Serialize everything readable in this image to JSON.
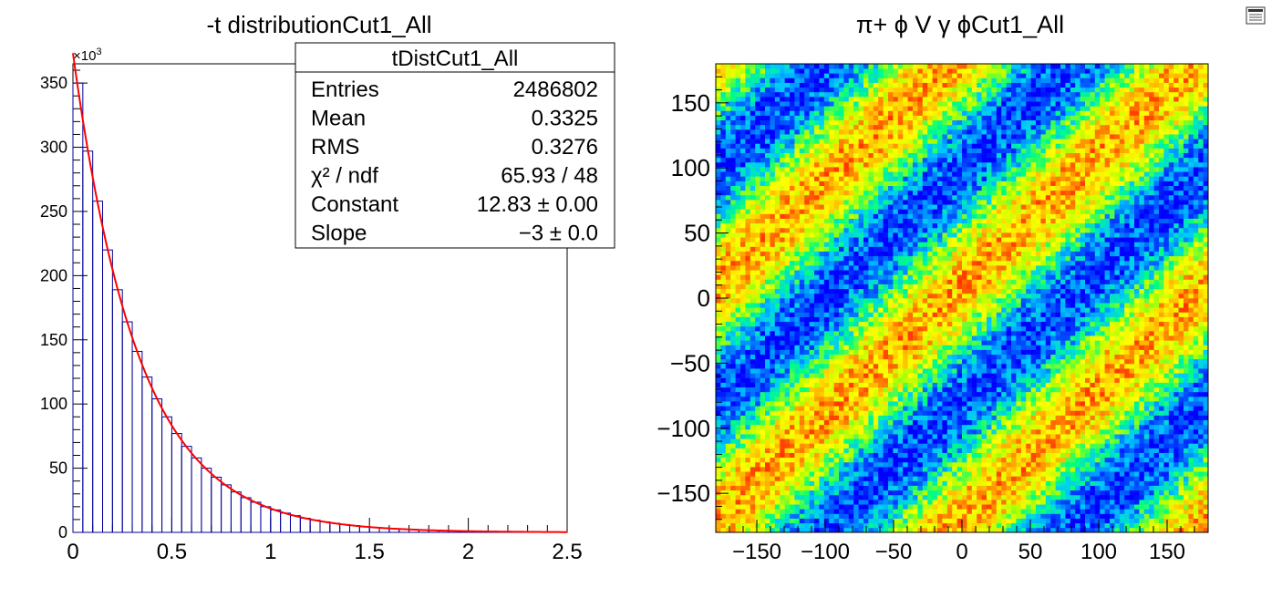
{
  "chart_data": [
    {
      "type": "bar",
      "title": "-t distributionCut1_All",
      "xlabel": "",
      "ylabel": "",
      "xlim": [
        0,
        2.5
      ],
      "ylim": [
        0,
        365000
      ],
      "y_multiplier_label": "×10",
      "y_multiplier_exp": "3",
      "x_ticks": [
        "0",
        "0.5",
        "1",
        "1.5",
        "2",
        "2.5"
      ],
      "y_ticks": [
        "0",
        "50",
        "100",
        "150",
        "200",
        "250",
        "300",
        "350"
      ],
      "bin_width": 0.05,
      "hist_color": "#000099",
      "fit_color": "#ff0000",
      "values": [
        350000,
        297000,
        258000,
        220000,
        189000,
        164000,
        141000,
        121000,
        104000,
        90000,
        77000,
        67000,
        58000,
        50000,
        43000,
        37000,
        31500,
        27000,
        23500,
        20000,
        17500,
        15000,
        13000,
        11000,
        9500,
        8200,
        7100,
        6100,
        5300,
        4500,
        3900,
        3400,
        2900,
        2500,
        2200,
        1900,
        1600,
        1400,
        1200,
        1000,
        900,
        760,
        660,
        570,
        490,
        420,
        360,
        310,
        270,
        230
      ],
      "fit": {
        "function": "exp(Constant + Slope*x)",
        "constant": 12.83,
        "slope": -3
      },
      "stats_box": {
        "title": "tDistCut1_All",
        "rows": [
          {
            "label": "Entries",
            "value": "2486802"
          },
          {
            "label": "Mean",
            "value": "0.3325"
          },
          {
            "label": "RMS",
            "value": "0.3276"
          },
          {
            "label": "χ² / ndf",
            "value": "65.93 / 48"
          },
          {
            "label": "Constant",
            "value": "12.83 ± 0.00"
          },
          {
            "label": "Slope",
            "value": "−3 ± 0.0"
          }
        ]
      }
    },
    {
      "type": "heatmap",
      "title": "π+ ϕ V γ ϕCut1_All",
      "xlabel": "",
      "ylabel": "",
      "xlim": [
        -180,
        180
      ],
      "ylim": [
        -180,
        180
      ],
      "x_ticks": [
        "−150",
        "−100",
        "−50",
        "0",
        "50",
        "100",
        "150"
      ],
      "y_ticks": [
        "−150",
        "−100",
        "−50",
        "0",
        "50",
        "100",
        "150"
      ],
      "bins": [
        100,
        100
      ],
      "pattern": "diagonal bands: intensity ≈ 0.5 + 0.5·cos(2·(ϕ_y − ϕ_x)), high intensity along ϕ_y ≈ ϕ_x + k·180",
      "palette": [
        "#0000ff",
        "#0055ff",
        "#00c8ff",
        "#00ff80",
        "#b4ff00",
        "#ffff00",
        "#ffb000",
        "#ff4000",
        "#ff0000"
      ]
    }
  ]
}
